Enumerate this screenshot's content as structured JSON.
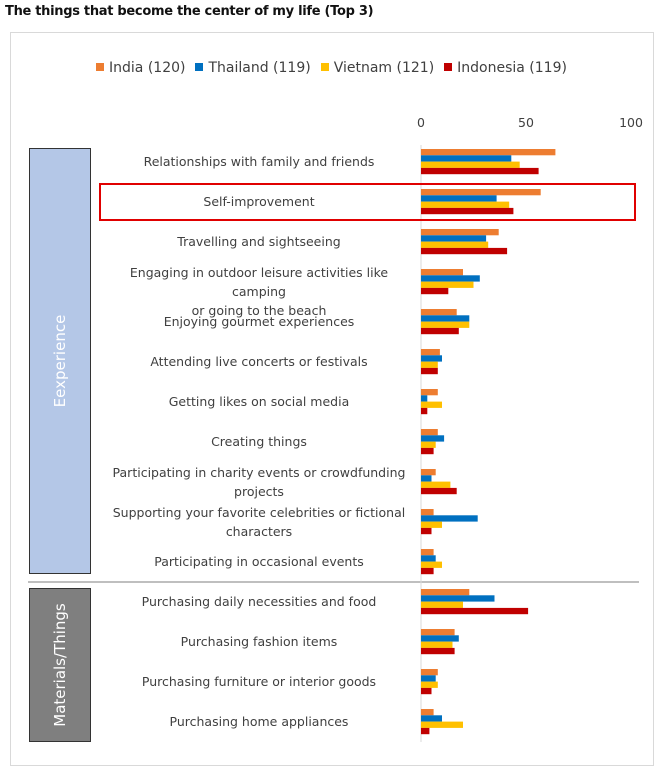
{
  "chart_data": {
    "type": "bar",
    "orientation": "horizontal",
    "title": "The things that become the center of my life (Top 3)",
    "xlim": [
      0,
      100
    ],
    "xticks": [
      0,
      50,
      100
    ],
    "legend_position": "top",
    "series": [
      {
        "name": "India (120)",
        "color": "#ed7d31",
        "values": [
          64,
          57,
          37,
          20,
          17,
          9,
          8,
          8,
          7,
          6,
          6,
          23,
          16,
          8,
          6
        ]
      },
      {
        "name": "Thailand (119)",
        "color": "#0070c0",
        "values": [
          43,
          36,
          31,
          28,
          23,
          10,
          3,
          11,
          5,
          27,
          7,
          35,
          18,
          7,
          10
        ]
      },
      {
        "name": "Vietnam (121)",
        "color": "#ffc000",
        "values": [
          47,
          42,
          32,
          25,
          23,
          8,
          10,
          7,
          14,
          10,
          10,
          20,
          15,
          8,
          20
        ]
      },
      {
        "name": "Indonesia (119)",
        "color": "#c00000",
        "values": [
          56,
          44,
          41,
          13,
          18,
          8,
          3,
          6,
          17,
          5,
          6,
          51,
          16,
          5,
          4
        ]
      }
    ],
    "categories": [
      {
        "lines": [
          "Relationships with family and friends"
        ],
        "group": "Eexperience"
      },
      {
        "lines": [
          "Self-improvement"
        ],
        "group": "Eexperience",
        "highlighted": true
      },
      {
        "lines": [
          "Travelling and sightseeing"
        ],
        "group": "Eexperience"
      },
      {
        "lines": [
          "Engaging in outdoor leisure activities like camping",
          "or going to the beach"
        ],
        "group": "Eexperience"
      },
      {
        "lines": [
          "Enjoying gourmet experiences"
        ],
        "group": "Eexperience"
      },
      {
        "lines": [
          "Attending live concerts or festivals"
        ],
        "group": "Eexperience"
      },
      {
        "lines": [
          "Getting likes on social media"
        ],
        "group": "Eexperience"
      },
      {
        "lines": [
          "Creating things"
        ],
        "group": "Eexperience"
      },
      {
        "lines": [
          "Participating in charity events or crowdfunding",
          "projects"
        ],
        "group": "Eexperience"
      },
      {
        "lines": [
          "Supporting your favorite celebrities or fictional",
          "characters"
        ],
        "group": "Eexperience"
      },
      {
        "lines": [
          "Participating in occasional events"
        ],
        "group": "Eexperience"
      },
      {
        "lines": [
          "Purchasing daily necessities and food"
        ],
        "group": "Materials/Things"
      },
      {
        "lines": [
          "Purchasing fashion items"
        ],
        "group": "Materials/Things"
      },
      {
        "lines": [
          "Purchasing furniture or interior goods"
        ],
        "group": "Materials/Things"
      },
      {
        "lines": [
          "Purchasing home appliances"
        ],
        "group": "Materials/Things"
      }
    ],
    "groups": [
      "Eexperience",
      "Materials/Things"
    ]
  }
}
